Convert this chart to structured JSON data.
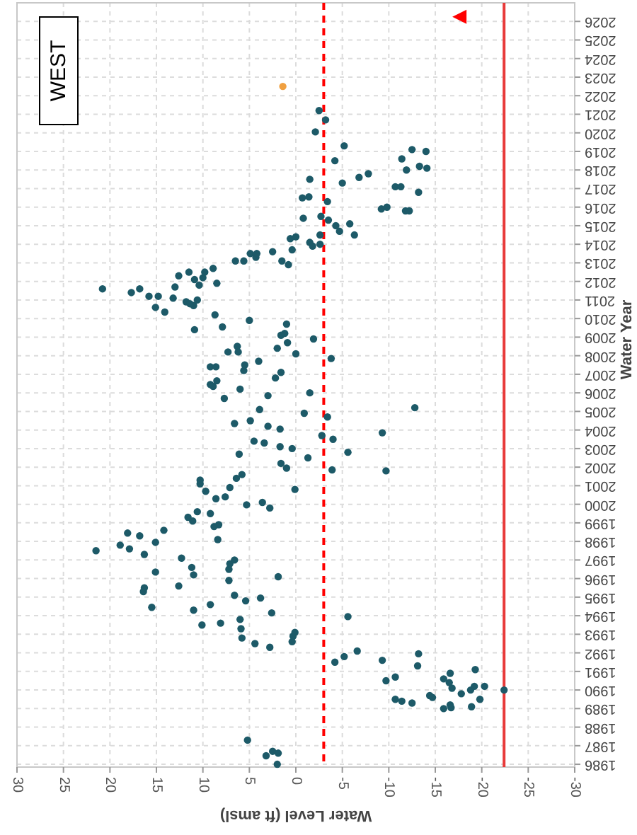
{
  "chart_data": {
    "type": "scatter",
    "title": "WEST",
    "xlabel": "Water Level (ft amsl)",
    "ylabel": "Water Year",
    "xlim": [
      30,
      -30
    ],
    "xticks": [
      30,
      25,
      20,
      15,
      10,
      5,
      0,
      -5,
      -10,
      -15,
      -20,
      -25,
      -30
    ],
    "ylim": [
      1985.85,
      2027
    ],
    "yticks": [
      1986,
      1987,
      1988,
      1989,
      1990,
      1991,
      1992,
      1993,
      1994,
      1995,
      1996,
      1997,
      1998,
      1999,
      2000,
      2001,
      2002,
      2003,
      2004,
      2005,
      2006,
      2007,
      2008,
      2009,
      2010,
      2011,
      2012,
      2013,
      2014,
      2015,
      2016,
      2017,
      2018,
      2019,
      2020,
      2021,
      2022,
      2023,
      2024,
      2025,
      2026
    ],
    "grid": true,
    "ref_lines": [
      {
        "axis": "x",
        "value": -3,
        "color": "#ff0000",
        "line_style": "dashed"
      },
      {
        "axis": "x",
        "value": -22.4,
        "color": "#e83a3a",
        "line_style": "solid"
      }
    ],
    "series": [
      {
        "color": "#1d5a68",
        "marker": "circle",
        "x": [
          2.0,
          3.2,
          2.5,
          1.9,
          5.2,
          -22.4,
          -15.9,
          -16.6,
          -16.7,
          -18.9,
          -19.8,
          -10.7,
          -11.4,
          -12.5,
          -14.4,
          -14.7,
          -17.8,
          -18.8,
          -19.2,
          -20.3,
          -16.8,
          -16.5,
          -15.9,
          -16.6,
          -19.3,
          -9.7,
          -10.7,
          -13.1,
          -13.2,
          -9.3,
          -4.2,
          -5.2,
          -6.6,
          -5.6,
          2.8,
          4.4,
          5.8,
          5.9,
          6.0,
          0.4,
          0.3,
          0.1,
          2.6,
          5.4,
          3.8,
          6.6,
          8.1,
          10.1,
          11.0,
          9.2,
          15.5,
          16.4,
          16.3,
          12.6,
          11.0,
          11.2,
          12.3,
          15.1,
          16.3,
          7.2,
          1.9,
          7.2,
          7.1,
          6.6,
          21.5,
          18.9,
          17.9,
          15.1,
          8.4,
          18.1,
          16.8,
          14.2,
          8.3,
          8.8,
          11.6,
          11.1,
          10.6,
          9.2,
          5.3,
          3.6,
          2.8,
          0.1,
          8.6,
          7.6,
          9.7,
          7.1,
          6.4,
          5.8,
          10.3,
          10.3,
          6.1,
          1.6,
          1.0,
          -1.3,
          -3.9,
          -9.7,
          -5.6,
          1.7,
          0.4,
          4.5,
          3.4,
          -2.8,
          -4.0,
          -9.3,
          6.6,
          4.9,
          3.0,
          1.7,
          3.9,
          -0.9,
          -3.4,
          -12.8,
          7.7,
          6.0,
          3.0,
          -1.5,
          9.2,
          8.9,
          8.5,
          9.2,
          8.6,
          5.6,
          5.5,
          4.0,
          2.2,
          1.6,
          7.3,
          6.3,
          6.2,
          2.0,
          0.0,
          -3.8,
          1.6,
          1.2,
          0.9,
          -1.9,
          1.0,
          5.0,
          7.9,
          8.7,
          10.9,
          14.1,
          15.1,
          11.0,
          11.8,
          11.4,
          10.6,
          13.2,
          15.8,
          14.8,
          16.8,
          17.7,
          20.8,
          13.0,
          8.5,
          10.4,
          10.0,
          10.9,
          12.6,
          11.5,
          9.8,
          8.9,
          6.5,
          5.6,
          4.9,
          4.3,
          4.2,
          2.5,
          1.5,
          0.8,
          0.4,
          0.6,
          0.0,
          -1.5,
          -1.8,
          -2.6,
          -2.6,
          -0.8,
          -2.7,
          -3.5,
          -4.3,
          -4.7,
          -5.8,
          -6.3,
          -3.4,
          -0.7,
          -1.4,
          -1.5,
          -5.0,
          -6.8,
          -7.8,
          -4.2,
          -5.2,
          -2.1,
          -3.2,
          -2.5,
          -9.2,
          -9.8,
          -11.8,
          -12.2,
          -10.7,
          -11.3,
          -13.2,
          -11.9,
          -13.3,
          -14.1,
          -11.4,
          -12.5,
          -14.0
        ],
        "values": [
          1986.0,
          1986.46,
          1986.7,
          1986.6,
          1987.3,
          1990.0,
          1989.0,
          1989.2,
          1989.05,
          1989.1,
          1989.5,
          1989.5,
          1989.4,
          1989.3,
          1989.7,
          1989.6,
          1989.8,
          1990.0,
          1990.2,
          1990.2,
          1990.1,
          1990.4,
          1990.6,
          1990.9,
          1991.1,
          1990.5,
          1990.7,
          1991.3,
          1991.95,
          1991.6,
          1991.5,
          1991.8,
          1992.1,
          1993.95,
          1992.3,
          1992.5,
          1992.8,
          1993.3,
          1993.8,
          1992.6,
          1992.9,
          1993.1,
          1994.15,
          1994.8,
          1994.95,
          1995.1,
          1993.6,
          1993.5,
          1994.3,
          1994.6,
          1994.45,
          1995.3,
          1995.5,
          1995.6,
          1996.2,
          1996.6,
          1997.1,
          1996.35,
          1997.3,
          1995.9,
          1996.1,
          1996.5,
          1996.8,
          1997.0,
          1997.5,
          1997.8,
          1997.6,
          1997.95,
          1998.1,
          1998.45,
          1998.3,
          1998.6,
          1998.9,
          1998.8,
          1999.3,
          1999.1,
          1999.6,
          1999.5,
          1999.97,
          2000.1,
          1999.8,
          2000.8,
          2000.3,
          2000.4,
          2000.7,
          2000.9,
          2001.4,
          2001.6,
          2001.3,
          2001.1,
          2002.7,
          2002.2,
          2001.95,
          2002.5,
          2001.85,
          2001.8,
          2002.8,
          2003.1,
          2003.0,
          2003.4,
          2003.3,
          2003.7,
          2003.5,
          2003.85,
          2004.35,
          2004.5,
          2004.2,
          2004.05,
          2005.1,
          2004.9,
          2004.7,
          2005.2,
          2005.7,
          2006.2,
          2005.85,
          2006.0,
          2006.45,
          2006.35,
          2006.65,
          2007.4,
          2007.4,
          2007.2,
          2007.5,
          2007.7,
          2006.8,
          2007.1,
          2008.2,
          2008.5,
          2008.2,
          2008.4,
          2008.1,
          2007.85,
          2009.1,
          2009.2,
          2008.7,
          2008.9,
          2009.7,
          2009.9,
          2009.55,
          2010.2,
          2009.4,
          2010.35,
          2010.6,
          2010.7,
          2010.9,
          2010.8,
          2011.0,
          2011.1,
          2011.2,
          2011.2,
          2011.6,
          2011.4,
          2011.6,
          2011.7,
          2011.9,
          2011.8,
          2012.2,
          2012.1,
          2012.3,
          2012.5,
          2012.5,
          2012.7,
          2013.1,
          2013.1,
          2013.5,
          2013.3,
          2013.5,
          2013.6,
          2013.1,
          2012.9,
          2013.7,
          2014.3,
          2014.4,
          2014.1,
          2013.9,
          2014.0,
          2014.5,
          2015.4,
          2015.5,
          2015.3,
          2015.0,
          2014.7,
          2015.1,
          2014.5,
          2016.3,
          2016.5,
          2016.55,
          2017.5,
          2017.3,
          2017.6,
          2017.8,
          2018.5,
          2019.3,
          2020.05,
          2020.7,
          2021.2,
          2015.9,
          2016.0,
          2015.8,
          2015.8,
          2017.1,
          2017.1,
          2016.8,
          2018.0,
          2018.2,
          2018.1,
          2018.6,
          2019.1,
          2019.0
        ]
      },
      {
        "color": "#f0a040",
        "marker": "circle",
        "x": [
          1.4
        ],
        "values": [
          2022.5
        ]
      },
      {
        "color": "#ff0000",
        "marker": "triangle",
        "x": [
          -17.6
        ],
        "values": [
          2026.25
        ]
      }
    ]
  }
}
